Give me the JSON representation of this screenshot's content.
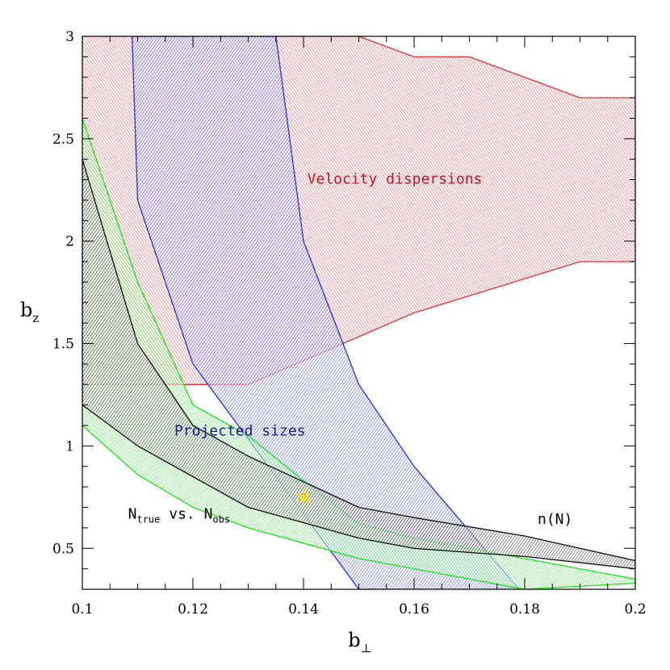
{
  "chart_data": {
    "type": "area",
    "title": "",
    "xlabel": {
      "main": "b",
      "sub": "⊥"
    },
    "ylabel": {
      "main": "b",
      "sub": "z"
    },
    "xlim": [
      0.1,
      0.2
    ],
    "ylim": [
      0.3,
      3.0
    ],
    "x_ticks": [
      0.1,
      0.12,
      0.14,
      0.16,
      0.18,
      0.2
    ],
    "x_tick_labels": [
      "0.1",
      "0.12",
      "0.14",
      "0.16",
      "0.18",
      "0.2"
    ],
    "y_ticks": [
      0.5,
      1,
      1.5,
      2,
      2.5,
      3
    ],
    "y_tick_labels": [
      "0.5",
      "1",
      "1.5",
      "2",
      "2.5",
      "3"
    ],
    "regions": [
      {
        "name": "Velocity dispersions",
        "color": "#e0303a",
        "fill": "#f3b8bb",
        "polygon": [
          [
            0.1,
            3.0
          ],
          [
            0.15,
            3.0
          ],
          [
            0.16,
            2.9
          ],
          [
            0.17,
            2.9
          ],
          [
            0.19,
            2.7
          ],
          [
            0.2,
            2.7
          ],
          [
            0.2,
            1.9
          ],
          [
            0.19,
            1.9
          ],
          [
            0.16,
            1.65
          ],
          [
            0.13,
            1.3
          ],
          [
            0.12,
            1.3
          ],
          [
            0.1,
            1.3
          ]
        ]
      },
      {
        "name": "Projected sizes",
        "color": "#2430d8",
        "fill": "#8a8fe2",
        "polygon": [
          [
            0.109,
            3.0
          ],
          [
            0.135,
            3.0
          ],
          [
            0.14,
            2.0
          ],
          [
            0.15,
            1.3
          ],
          [
            0.16,
            0.9
          ],
          [
            0.179,
            0.3
          ],
          [
            0.15,
            0.3
          ],
          [
            0.12,
            1.4
          ],
          [
            0.11,
            2.2
          ]
        ]
      },
      {
        "name": "N_true vs. N_obs",
        "color": "#1ee01e",
        "fill": "#7fe27f",
        "polygon": [
          [
            0.1,
            2.6
          ],
          [
            0.11,
            1.8
          ],
          [
            0.12,
            1.2
          ],
          [
            0.13,
            1.05
          ],
          [
            0.14,
            0.83
          ],
          [
            0.15,
            0.62
          ],
          [
            0.16,
            0.55
          ],
          [
            0.18,
            0.45
          ],
          [
            0.2,
            0.35
          ],
          [
            0.2,
            0.33
          ],
          [
            0.18,
            0.3
          ],
          [
            0.16,
            0.4
          ],
          [
            0.15,
            0.45
          ],
          [
            0.13,
            0.6
          ],
          [
            0.12,
            0.7
          ],
          [
            0.11,
            0.86
          ],
          [
            0.1,
            1.1
          ]
        ]
      },
      {
        "name": "n(N)",
        "color": "#111111",
        "fill": "#555555",
        "polygon": [
          [
            0.1,
            2.4
          ],
          [
            0.11,
            1.5
          ],
          [
            0.12,
            1.1
          ],
          [
            0.13,
            0.95
          ],
          [
            0.15,
            0.7
          ],
          [
            0.16,
            0.65
          ],
          [
            0.18,
            0.56
          ],
          [
            0.2,
            0.44
          ],
          [
            0.2,
            0.4
          ],
          [
            0.18,
            0.46
          ],
          [
            0.16,
            0.5
          ],
          [
            0.15,
            0.55
          ],
          [
            0.13,
            0.7
          ],
          [
            0.12,
            0.85
          ],
          [
            0.11,
            1.0
          ],
          [
            0.1,
            1.2
          ]
        ]
      }
    ],
    "annotations": [
      {
        "text": "Velocity dispersions",
        "x": 0.1565,
        "y": 2.28,
        "color": "#b01c2a"
      },
      {
        "text": "Projected sizes",
        "x": 0.1285,
        "y": 1.05,
        "color": "#1c1c80"
      },
      {
        "text": "n(N)",
        "x": 0.1855,
        "y": 0.62,
        "color": "#000000"
      },
      {
        "text": "N",
        "sub": "true",
        "text2": " vs. N",
        "sub2": "obs",
        "x": 0.1175,
        "y": 0.645,
        "color": "#000000"
      }
    ],
    "marker": {
      "symbol": "asterisk",
      "x": 0.14,
      "y": 0.75,
      "color": "#ffdd00"
    },
    "grid": false,
    "legend": "none"
  }
}
